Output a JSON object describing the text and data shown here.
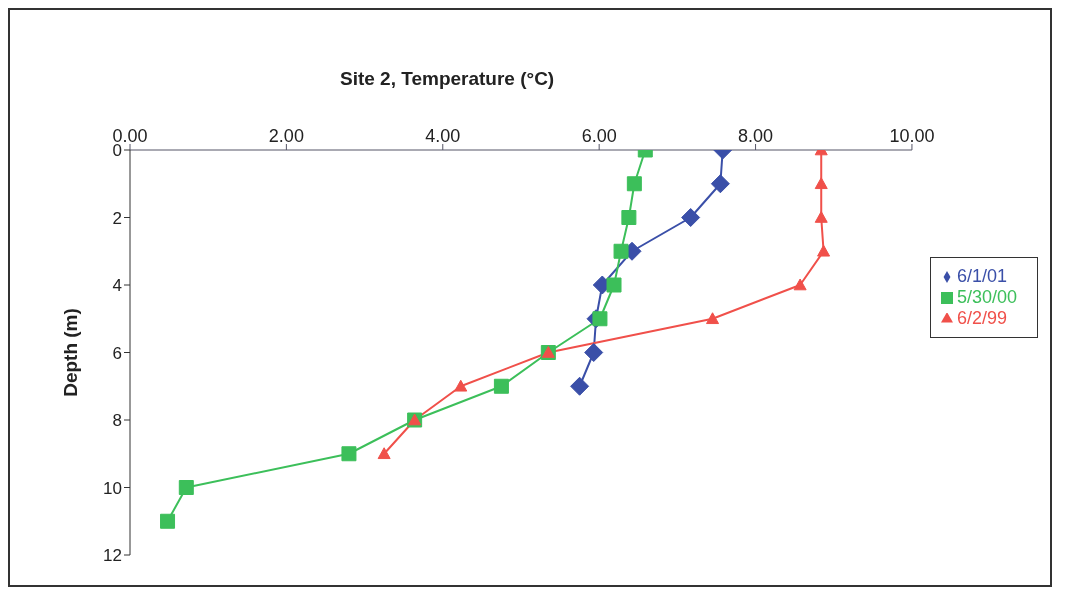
{
  "chart_data": {
    "type": "line",
    "title": "Site 2, Temperature (°C)",
    "ylabel": "Depth (m)",
    "xlim": [
      0,
      10
    ],
    "xticks": [
      {
        "value": 0,
        "label": "0.00"
      },
      {
        "value": 2,
        "label": "2.00"
      },
      {
        "value": 4,
        "label": "4.00"
      },
      {
        "value": 6,
        "label": "6.00"
      },
      {
        "value": 8,
        "label": "8.00"
      },
      {
        "value": 10,
        "label": "10.00"
      }
    ],
    "ylim": [
      12,
      0
    ],
    "yticks": [
      0,
      2,
      4,
      6,
      8,
      10,
      12
    ],
    "grid": false,
    "legend": "right",
    "line_style": "solid",
    "series": [
      {
        "name": "6/1/01",
        "color": "#3a4fa8",
        "marker": "diamond",
        "x": [
          7.58,
          7.55,
          7.17,
          6.42,
          6.04,
          5.96,
          5.93,
          5.75
        ],
        "values": [
          0,
          1,
          2,
          3,
          4,
          5,
          6,
          7
        ]
      },
      {
        "name": "5/30/00",
        "color": "#3cbf5a",
        "marker": "square",
        "x": [
          6.59,
          6.45,
          6.38,
          6.28,
          6.19,
          6.01,
          5.35,
          4.75,
          3.64,
          2.8,
          0.72,
          0.48
        ],
        "values": [
          0,
          1,
          2,
          3,
          4,
          5,
          6,
          7,
          8,
          9,
          10,
          11
        ]
      },
      {
        "name": "6/2/99",
        "color": "#f0504a",
        "marker": "triangle",
        "x": [
          8.84,
          8.84,
          8.84,
          8.87,
          8.57,
          7.45,
          5.35,
          4.23,
          3.64,
          3.25
        ],
        "values": [
          0,
          1,
          2,
          3,
          4,
          5,
          6,
          7,
          8,
          9
        ]
      }
    ]
  }
}
